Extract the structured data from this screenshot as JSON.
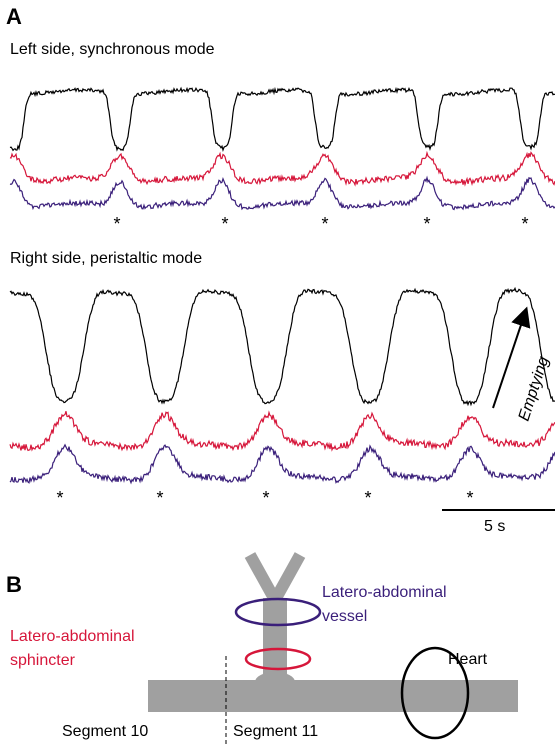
{
  "panel_a": {
    "label": "A",
    "top": {
      "title": "Left side,  synchronous mode",
      "markers": [
        "*",
        "*",
        "*",
        "*",
        "*"
      ]
    },
    "bottom": {
      "title": "Right side, peristaltic mode",
      "markers": [
        "*",
        "*",
        "*",
        "*",
        "*"
      ],
      "annotation": "Emptying"
    },
    "scale_bar": "5 s"
  },
  "panel_b": {
    "label": "B",
    "vessel": [
      "Latero-abdominal",
      "vessel"
    ],
    "sphincter": [
      "Latero-abdominal",
      "sphincter"
    ],
    "heart": "Heart",
    "segments": [
      "Segment 10",
      "Segment 11"
    ]
  }
}
